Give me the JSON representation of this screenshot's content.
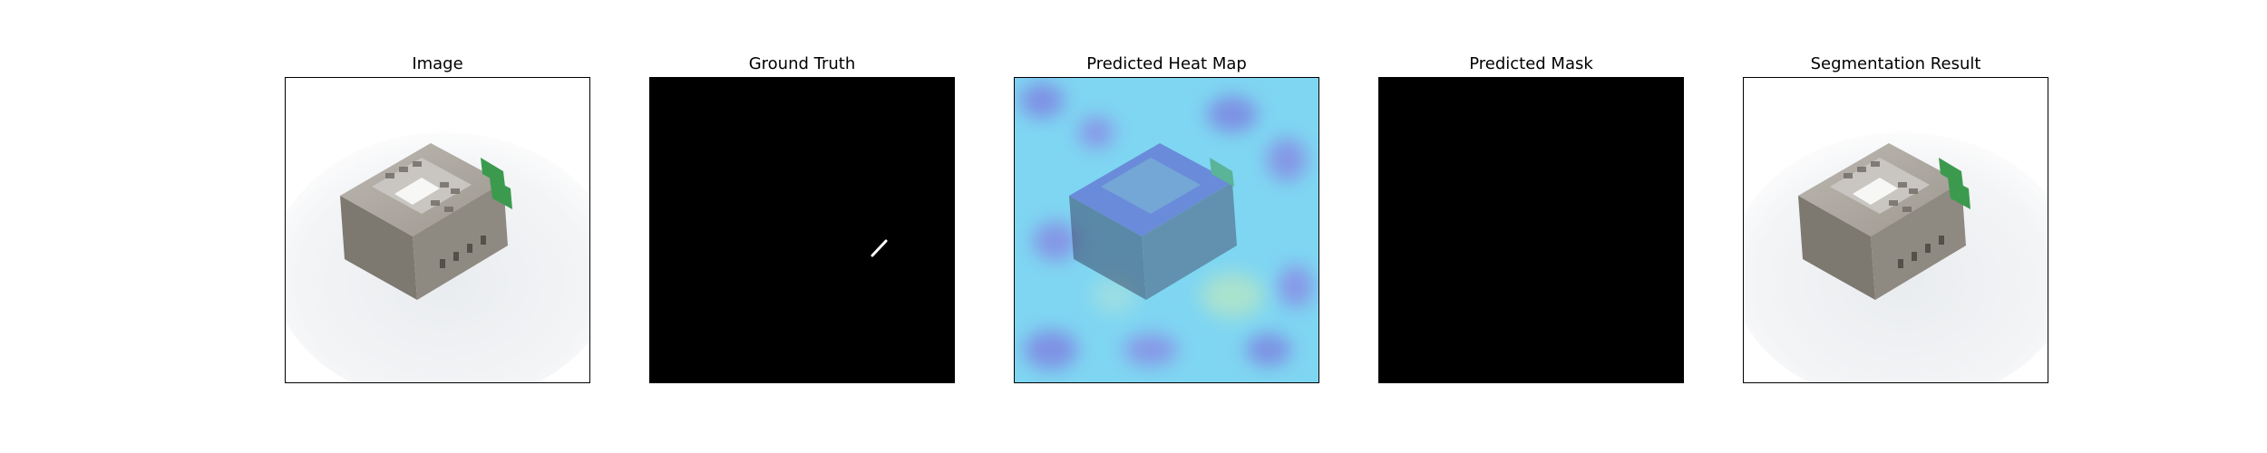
{
  "panels": [
    {
      "title": "Image"
    },
    {
      "title": "Ground Truth"
    },
    {
      "title": "Predicted Heat Map"
    },
    {
      "title": "Predicted Mask"
    },
    {
      "title": "Segmentation Result"
    }
  ],
  "colors": {
    "frame_border": "#000000",
    "mask_background": "#000000",
    "mask_foreground": "#ffffff",
    "heatmap_low": "#7fd6f2",
    "heatmap_high": "#6a4fd8",
    "device_body": "#a7a29b",
    "device_terminal": "#3c9a4e"
  }
}
